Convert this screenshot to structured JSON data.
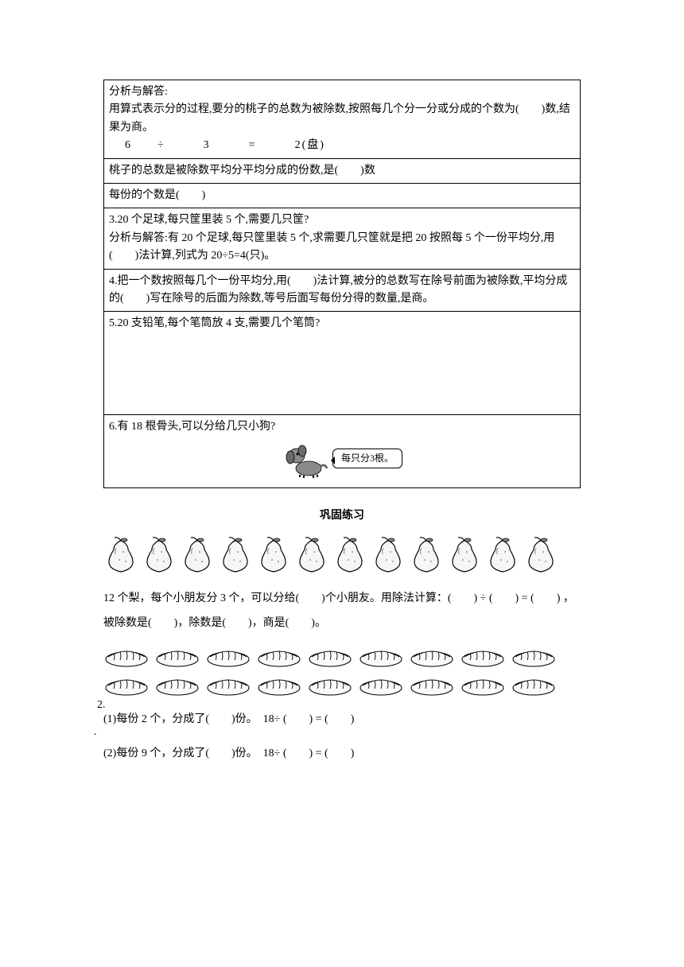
{
  "table": {
    "r1a": "分析与解答:",
    "r1b": "用算式表示分的过程,要分的桃子的总数为被除数,按照每几个分一分或分成的个数为(　　)数,结果为商。",
    "eq": "6　　÷　　　3　　　=　　　2(盘)",
    "r2": "桃子的总数是被除数平均分平均分成的份数,是(　　)数",
    "r3": "每份的个数是(　　)",
    "r4a": "3.20 个足球,每只筐里装 5 个,需要几只筐?",
    "r4b": "分析与解答:有 20 个足球,每只筐里装 5 个,求需要几只筐就是把 20 按照每 5 个一份平均分,用(　　)法计算,列式为 20÷5=4(只)。",
    "r5": "4.把一个数按照每几个一份平均分,用(　　)法计算,被分的总数写在除号前面为被除数,平均分成的(　　)写在除号的后面为除数,等号后面写每份分得的数量,是商。",
    "r6": "5.20 支铅笔,每个笔筒放 4 支,需要几个笔筒?",
    "r7": "6.有 18 根骨头,可以分给几只小狗?",
    "speech": "每只分3根。"
  },
  "practice": {
    "title": "巩固练习",
    "pear_count": 12,
    "q1": "12 个梨，每个小朋友分 3 个，可以分给(　　)个小朋友。用除法计算：(　　) ÷ (　　) = (　　) ，被除数是(　　)，除数是(　　)，商是(　　)。",
    "q2_label": "2.",
    "bread_count": 18,
    "q2a": "(1)每份 2 个，分成了(　　)份。　18÷ (　　) = (　　)",
    "q2b": "(2)每份 9 个，分成了(　　)份。　18÷ (　　) = (　　)"
  },
  "colors": {
    "bg": "#ffffff",
    "text": "#000000",
    "stroke": "#000000",
    "fill_light": "#f0f0f0",
    "fill_mid": "#b8b8b8",
    "fill_dark": "#5a5a5a"
  }
}
